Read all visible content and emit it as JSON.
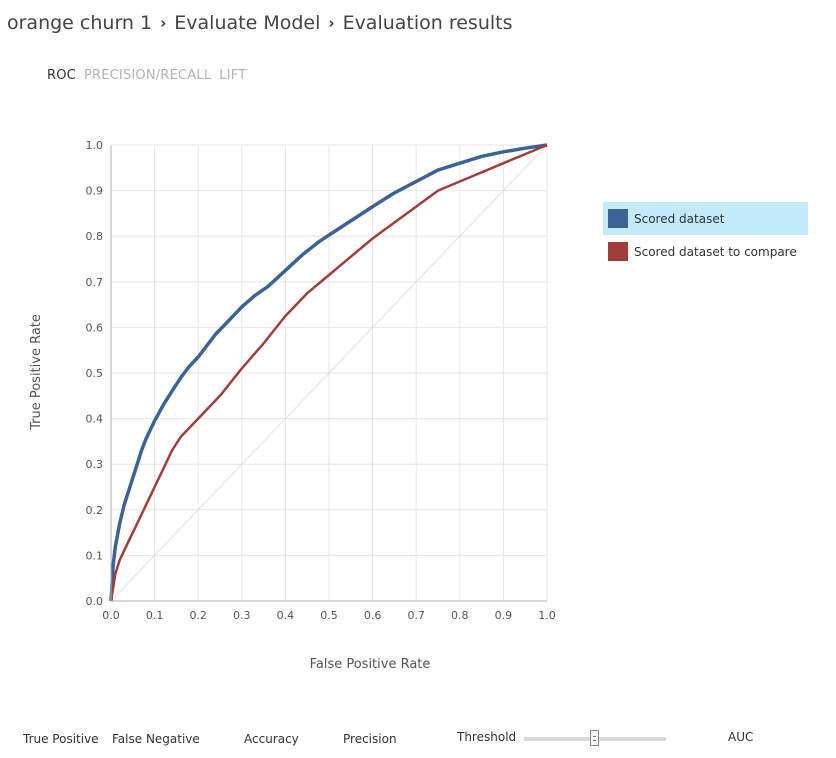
{
  "breadcrumb": {
    "items": [
      "orange churn 1",
      "Evaluate Model",
      "Evaluation results"
    ],
    "separator": "›"
  },
  "tabs": [
    {
      "label": "ROC",
      "active": true
    },
    {
      "label": "PRECISION/RECALL",
      "active": false
    },
    {
      "label": "LIFT",
      "active": false
    }
  ],
  "chart_data": {
    "type": "line",
    "title": "",
    "xlabel": "False Positive Rate",
    "ylabel": "True Positive Rate",
    "xlim": [
      0,
      1
    ],
    "ylim": [
      0,
      1
    ],
    "x_ticks": [
      "0.0",
      "0.1",
      "0.2",
      "0.3",
      "0.4",
      "0.5",
      "0.6",
      "0.7",
      "0.8",
      "0.9",
      "1.0"
    ],
    "y_ticks": [
      "0.0",
      "0.1",
      "0.2",
      "0.3",
      "0.4",
      "0.5",
      "0.6",
      "0.7",
      "0.8",
      "0.9",
      "1.0"
    ],
    "grid": true,
    "legend_position": "right",
    "series": [
      {
        "name": "Scored dataset",
        "color": "#3b6396",
        "points": [
          [
            0,
            0
          ],
          [
            0.005,
            0.08
          ],
          [
            0.01,
            0.12
          ],
          [
            0.02,
            0.17
          ],
          [
            0.03,
            0.21
          ],
          [
            0.04,
            0.24
          ],
          [
            0.05,
            0.27
          ],
          [
            0.06,
            0.3
          ],
          [
            0.07,
            0.33
          ],
          [
            0.08,
            0.355
          ],
          [
            0.09,
            0.375
          ],
          [
            0.1,
            0.395
          ],
          [
            0.12,
            0.43
          ],
          [
            0.14,
            0.46
          ],
          [
            0.16,
            0.49
          ],
          [
            0.18,
            0.515
          ],
          [
            0.2,
            0.535
          ],
          [
            0.22,
            0.56
          ],
          [
            0.24,
            0.585
          ],
          [
            0.26,
            0.605
          ],
          [
            0.28,
            0.625
          ],
          [
            0.3,
            0.645
          ],
          [
            0.33,
            0.67
          ],
          [
            0.36,
            0.69
          ],
          [
            0.4,
            0.725
          ],
          [
            0.44,
            0.76
          ],
          [
            0.48,
            0.79
          ],
          [
            0.52,
            0.815
          ],
          [
            0.56,
            0.84
          ],
          [
            0.6,
            0.865
          ],
          [
            0.65,
            0.895
          ],
          [
            0.7,
            0.92
          ],
          [
            0.75,
            0.945
          ],
          [
            0.8,
            0.96
          ],
          [
            0.85,
            0.975
          ],
          [
            0.9,
            0.985
          ],
          [
            0.95,
            0.993
          ],
          [
            1.0,
            1.0
          ]
        ]
      },
      {
        "name": "Scored dataset to compare",
        "color": "#a13d3b",
        "points": [
          [
            0,
            0
          ],
          [
            0.005,
            0.03
          ],
          [
            0.01,
            0.06
          ],
          [
            0.02,
            0.09
          ],
          [
            0.04,
            0.13
          ],
          [
            0.06,
            0.17
          ],
          [
            0.08,
            0.21
          ],
          [
            0.1,
            0.25
          ],
          [
            0.12,
            0.29
          ],
          [
            0.14,
            0.33
          ],
          [
            0.16,
            0.36
          ],
          [
            0.2,
            0.4
          ],
          [
            0.25,
            0.45
          ],
          [
            0.3,
            0.51
          ],
          [
            0.35,
            0.565
          ],
          [
            0.4,
            0.625
          ],
          [
            0.45,
            0.675
          ],
          [
            0.5,
            0.715
          ],
          [
            0.55,
            0.755
          ],
          [
            0.6,
            0.795
          ],
          [
            0.65,
            0.83
          ],
          [
            0.7,
            0.865
          ],
          [
            0.75,
            0.9
          ],
          [
            0.8,
            0.92
          ],
          [
            0.85,
            0.94
          ],
          [
            0.9,
            0.96
          ],
          [
            0.95,
            0.98
          ],
          [
            1.0,
            1.0
          ]
        ]
      }
    ],
    "baseline": {
      "color": "#e0e0e0",
      "points": [
        [
          0,
          0
        ],
        [
          1,
          1
        ]
      ]
    }
  },
  "legend": {
    "items": [
      {
        "label": "Scored dataset",
        "color": "#3b6396",
        "selected": true
      },
      {
        "label": "Scored dataset to compare",
        "color": "#a13d3b",
        "selected": false
      }
    ]
  },
  "bottom_bar": {
    "true_positive": "True Positive",
    "false_negative": "False Negative",
    "accuracy": "Accuracy",
    "precision": "Precision",
    "threshold": "Threshold",
    "threshold_value": 0.5,
    "auc": "AUC"
  },
  "colors": {
    "grid": "#e6e6e6",
    "axis": "#b0b0b0",
    "legend_selected_bg": "#c4e9fa"
  }
}
